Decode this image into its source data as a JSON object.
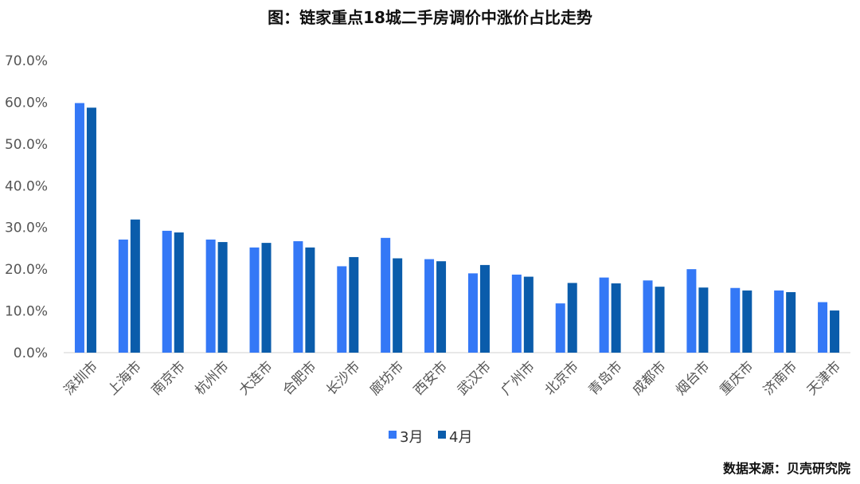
{
  "chart_data": {
    "type": "bar",
    "title": "图：链家重点18城二手房调价中涨价占比走势",
    "categories": [
      "深圳市",
      "上海市",
      "南京市",
      "杭州市",
      "大连市",
      "合肥市",
      "长沙市",
      "廊坊市",
      "西安市",
      "武汉市",
      "广州市",
      "北京市",
      "青岛市",
      "成都市",
      "烟台市",
      "重庆市",
      "济南市",
      "天津市"
    ],
    "series": [
      {
        "name": "3月",
        "color": "#3478f6",
        "values": [
          0.598,
          0.271,
          0.292,
          0.271,
          0.252,
          0.267,
          0.207,
          0.275,
          0.224,
          0.19,
          0.187,
          0.118,
          0.18,
          0.173,
          0.2,
          0.155,
          0.149,
          0.121
        ]
      },
      {
        "name": "4月",
        "color": "#0a5cab",
        "values": [
          0.587,
          0.319,
          0.288,
          0.265,
          0.263,
          0.252,
          0.229,
          0.226,
          0.219,
          0.21,
          0.182,
          0.167,
          0.166,
          0.158,
          0.156,
          0.149,
          0.145,
          0.101
        ]
      }
    ],
    "ylim": [
      0,
      0.7
    ],
    "yticks": [
      "0.0%",
      "10.0%",
      "20.0%",
      "30.0%",
      "40.0%",
      "50.0%",
      "60.0%",
      "70.0%"
    ],
    "grid": false,
    "legend_position": "bottom"
  },
  "source": "数据来源：贝壳研究院"
}
